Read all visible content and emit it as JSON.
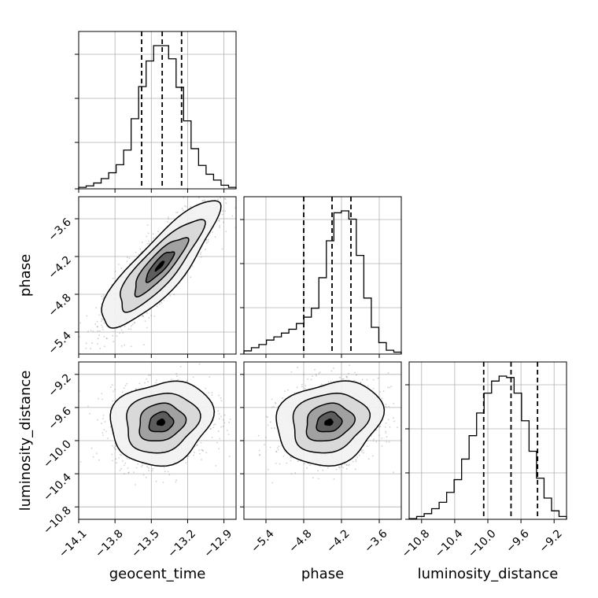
{
  "chart_data": {
    "type": "corner",
    "parameters": [
      "geocent_time",
      "phase",
      "luminosity_distance"
    ],
    "grid": true,
    "axes": {
      "geocent_time": {
        "range": [
          -14.1,
          -12.8
        ],
        "ticks": [
          -14.1,
          -13.8,
          -13.5,
          -13.2,
          -12.9
        ],
        "tick_labels": [
          "−14.1",
          "−13.8",
          "−13.5",
          "−13.2",
          "−12.9"
        ]
      },
      "phase": {
        "range": [
          -5.75,
          -3.25
        ],
        "ticks": [
          -5.4,
          -4.8,
          -4.2,
          -3.6
        ],
        "tick_labels": [
          "−5.4",
          "−4.8",
          "−4.2",
          "−3.6"
        ]
      },
      "luminosity_distance": {
        "range": [
          -10.95,
          -9.05
        ],
        "ticks": [
          -10.8,
          -10.4,
          -10.0,
          -9.6,
          -9.2
        ],
        "tick_labels": [
          "−10.8",
          "−10.4",
          "−10.0",
          "−9.6",
          "−9.2"
        ]
      }
    },
    "histograms": [
      {
        "param": "geocent_time",
        "counts": [
          2,
          4,
          8,
          14,
          22,
          33,
          53,
          96,
          140,
          175,
          196,
          196,
          178,
          139,
          93,
          55,
          32,
          20,
          12,
          5,
          2
        ],
        "quantiles": [
          -13.58,
          -13.41,
          -13.25
        ]
      },
      {
        "param": "phase",
        "counts": [
          5,
          10,
          15,
          22,
          27,
          33,
          39,
          48,
          58,
          72,
          120,
          178,
          222,
          225,
          212,
          155,
          88,
          42,
          18,
          6,
          3
        ],
        "quantiles": [
          -4.8,
          -4.35,
          -4.05
        ]
      },
      {
        "param": "luminosity_distance",
        "counts": [
          1,
          4,
          8,
          15,
          24,
          38,
          56,
          85,
          118,
          150,
          178,
          195,
          202,
          200,
          178,
          139,
          96,
          58,
          30,
          12,
          4
        ],
        "quantiles": [
          -10.05,
          -9.72,
          -9.4
        ]
      }
    ],
    "pairs": [
      {
        "x": "geocent_time",
        "y": "phase",
        "mean": [
          -13.43,
          -4.35
        ],
        "sd": [
          0.23,
          0.48
        ],
        "correlation": 0.85
      },
      {
        "x": "geocent_time",
        "y": "luminosity_distance",
        "mean": [
          -13.42,
          -9.78
        ],
        "sd": [
          0.2,
          0.24
        ],
        "correlation": 0.15
      },
      {
        "x": "phase",
        "y": "luminosity_distance",
        "mean": [
          -4.4,
          -9.78
        ],
        "sd": [
          0.4,
          0.24
        ],
        "correlation": 0.18
      }
    ]
  }
}
